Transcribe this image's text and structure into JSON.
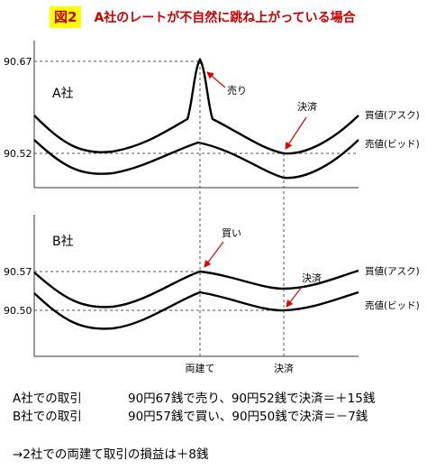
{
  "title": {
    "badge": "図2",
    "text": "A社のレートが不自然に跳ね上がっている場合"
  },
  "panels": [
    {
      "company": "A社",
      "levels": [
        "90.67",
        "90.52"
      ],
      "annotations": [
        "売り",
        "決済"
      ],
      "lines": [
        "買値(アスク)",
        "売値(ビッド)"
      ]
    },
    {
      "company": "B社",
      "levels": [
        "90.57",
        "90.50"
      ],
      "annotations": [
        "買い",
        "決済"
      ],
      "lines": [
        "買値(アスク)",
        "売値(ビッド)"
      ]
    }
  ],
  "xaxis": [
    "両建て",
    "決済"
  ],
  "summary": [
    {
      "label": "A社での取引",
      "text": "90円67銭で売り、90円52銭で決済＝＋15銭"
    },
    {
      "label": "B社での取引",
      "text": "90円57銭で買い、90円50銭で決済＝－7銭"
    }
  ],
  "conclusion": "→2社での両建て取引の損益は＋8銭",
  "colors": {
    "title": "#cc0000",
    "badge_bg": "#ffff00",
    "arrow": "#e00000"
  }
}
